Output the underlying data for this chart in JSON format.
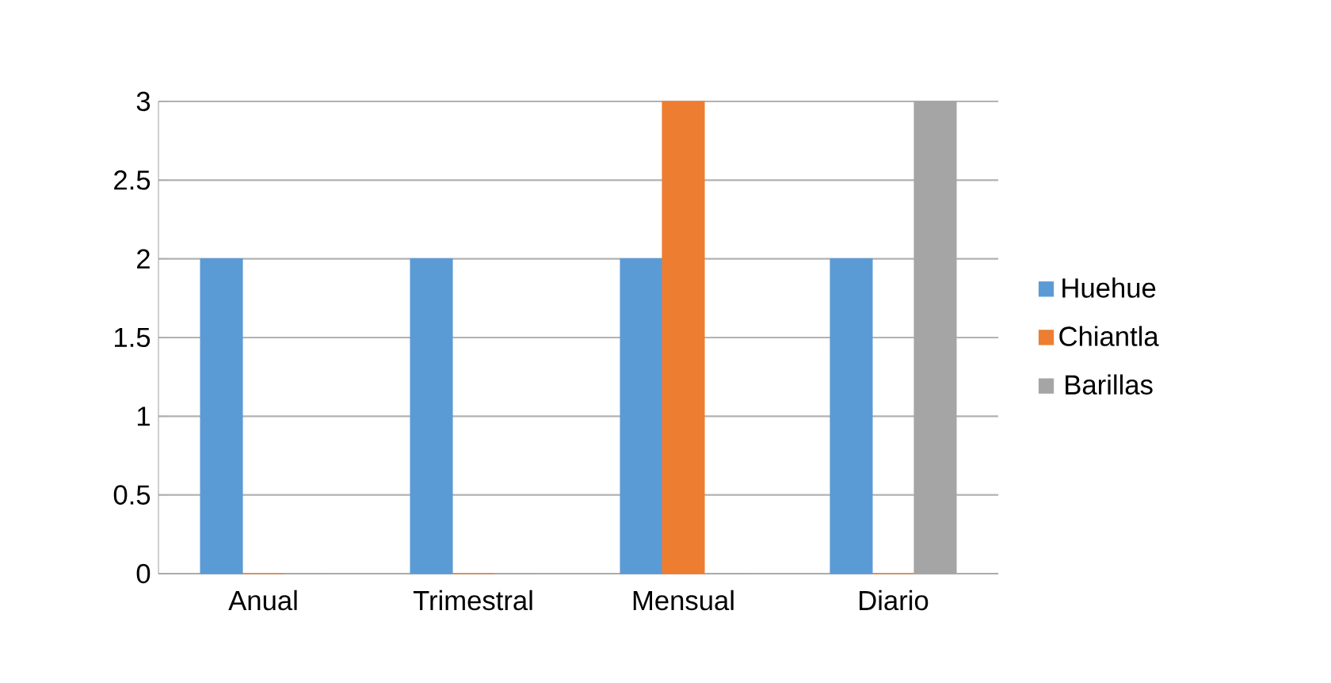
{
  "chart_data": {
    "type": "bar",
    "categories": [
      "Anual",
      "Trimestral",
      "Mensual",
      "Diario"
    ],
    "series": [
      {
        "name": "Huehue",
        "color": "#5b9bd5",
        "values": [
          2,
          2,
          2,
          2
        ]
      },
      {
        "name": "Chiantla",
        "color": "#ed7d31",
        "values": [
          0,
          0,
          3,
          0
        ]
      },
      {
        "name": "Barillas",
        "color": "#a5a5a5",
        "values": [
          0,
          0,
          0,
          3
        ]
      }
    ],
    "ylim": [
      0,
      3
    ],
    "yticks": [
      0,
      0.5,
      1,
      1.5,
      2,
      2.5,
      3
    ],
    "grid": "y",
    "legend": "right"
  }
}
